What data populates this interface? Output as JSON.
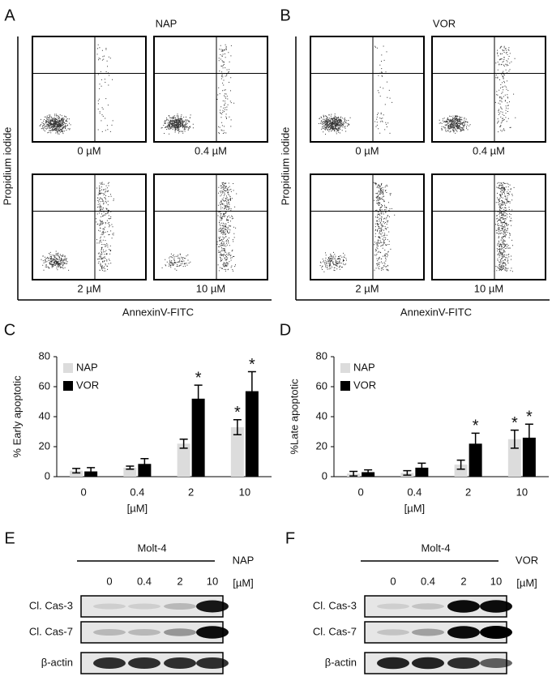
{
  "panel_labels": [
    "A",
    "B",
    "C",
    "D",
    "E",
    "F"
  ],
  "flow": [
    {
      "title": "NAP",
      "y_label": "Propidium iodide",
      "x_label": "AnnexinV-FITC",
      "plots": [
        "0 µM",
        "0.4 µM",
        "2 µM",
        "10 µM"
      ]
    },
    {
      "title": "VOR",
      "y_label": "Propidium iodide",
      "x_label": "AnnexinV-FITC",
      "plots": [
        "0 µM",
        "0.4 µM",
        "2 µM",
        "10 µM"
      ]
    }
  ],
  "chart_data": [
    {
      "type": "bar",
      "y_label": "% Early apoptotic",
      "x_label": "[µM]",
      "categories": [
        "0",
        "0.4",
        "2",
        "10"
      ],
      "series": [
        {
          "name": "NAP",
          "color": "#dcdcdc",
          "values": [
            4,
            6,
            22,
            33
          ],
          "errors": [
            1.5,
            1,
            3,
            5
          ],
          "significance": [
            null,
            null,
            null,
            "*"
          ]
        },
        {
          "name": "VOR",
          "color": "#000000",
          "values": [
            3.5,
            8.5,
            52,
            57
          ],
          "errors": [
            2.5,
            3.5,
            9,
            13
          ],
          "significance": [
            null,
            null,
            "*",
            "*"
          ]
        }
      ],
      "ylim": [
        0,
        80
      ],
      "yticks": [
        0,
        20,
        40,
        60,
        80
      ]
    },
    {
      "type": "bar",
      "y_label": "%Late apoptotic",
      "x_label": "[µM]",
      "categories": [
        "0",
        "0.4",
        "2",
        "10"
      ],
      "series": [
        {
          "name": "NAP",
          "color": "#dcdcdc",
          "values": [
            2,
            2.5,
            8,
            25
          ],
          "errors": [
            1.5,
            1.5,
            3,
            6
          ],
          "significance": [
            null,
            null,
            null,
            "*"
          ]
        },
        {
          "name": "VOR",
          "color": "#000000",
          "values": [
            3,
            6,
            22,
            26
          ],
          "errors": [
            1.5,
            3,
            7,
            9
          ],
          "significance": [
            null,
            null,
            "*",
            "*"
          ]
        }
      ],
      "ylim": [
        0,
        80
      ],
      "yticks": [
        0,
        20,
        40,
        60,
        80
      ]
    }
  ],
  "blots": [
    {
      "cell_line": "Molt-4",
      "drug": "NAP",
      "unit": "[µM]",
      "lanes": [
        "0",
        "0.4",
        "2",
        "10"
      ],
      "rows": [
        {
          "label": "Cl. Cas-3",
          "bands": [
            0.1,
            0.1,
            0.2,
            0.9
          ]
        },
        {
          "label": "Cl. Cas-7",
          "bands": [
            0.2,
            0.2,
            0.35,
            0.95
          ]
        },
        {
          "label": "β-actin",
          "bands": [
            0.8,
            0.8,
            0.8,
            0.8
          ]
        }
      ]
    },
    {
      "cell_line": "Molt-4",
      "drug": "VOR",
      "unit": "[µM]",
      "lanes": [
        "0",
        "0.4",
        "2",
        "10"
      ],
      "rows": [
        {
          "label": "Cl. Cas-3",
          "bands": [
            0.1,
            0.15,
            0.95,
            0.95
          ]
        },
        {
          "label": "Cl. Cas-7",
          "bands": [
            0.15,
            0.3,
            0.95,
            1
          ]
        },
        {
          "label": "β-actin",
          "bands": [
            0.85,
            0.85,
            0.8,
            0.6
          ]
        }
      ]
    }
  ]
}
